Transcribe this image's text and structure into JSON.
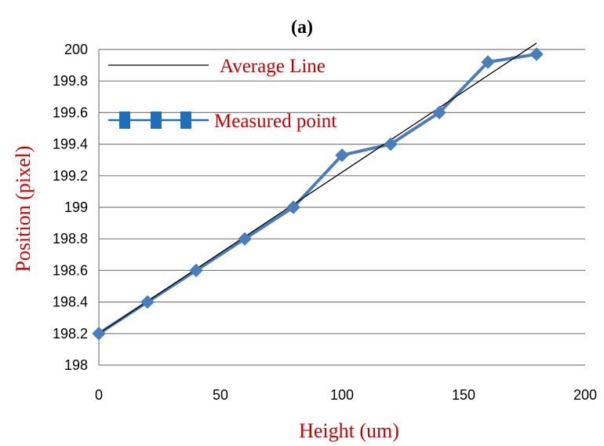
{
  "chart_data": {
    "type": "line",
    "panel_label": "(a)",
    "title": "",
    "xlabel": "Height (um)",
    "ylabel": "Position (pixel)",
    "xlim": [
      0,
      200
    ],
    "ylim": [
      198,
      200
    ],
    "x_ticks": [
      "0",
      "50",
      "100",
      "150",
      "200"
    ],
    "y_ticks": [
      "198",
      "198.2",
      "198.4",
      "198.6",
      "198.8",
      "199",
      "199.2",
      "199.4",
      "199.6",
      "199.8",
      "200"
    ],
    "grid": "horizontal",
    "legend_placement": "top-left",
    "series": [
      {
        "name": "Average Line",
        "style": "thin-line",
        "x": [
          0,
          180
        ],
        "y": [
          198.2,
          200.04
        ]
      },
      {
        "name": "Measured point",
        "style": "line-with-diamond-markers",
        "x": [
          0,
          20,
          40,
          60,
          80,
          100,
          120,
          140,
          160,
          180
        ],
        "y": [
          198.2,
          198.4,
          198.6,
          198.8,
          199.0,
          199.33,
          199.4,
          199.6,
          199.92,
          199.97
        ]
      }
    ],
    "colors": {
      "measured": "#4A7EBB",
      "legend_marker": "#1F6FB8",
      "average": "#000000",
      "axis_title": "#CC0000",
      "legend_text": "#CC0000",
      "grid": "#7F7F7F"
    }
  }
}
